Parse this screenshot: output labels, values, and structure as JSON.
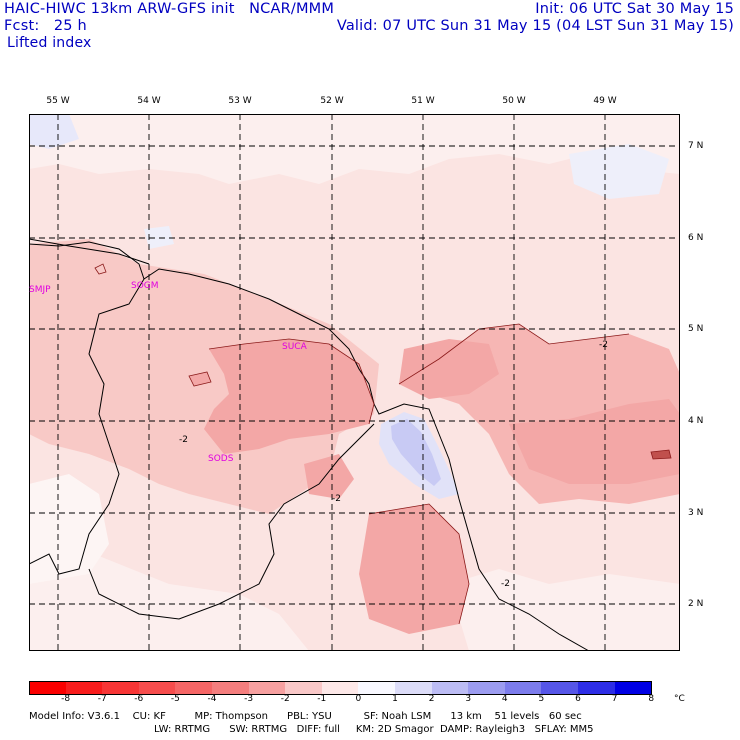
{
  "header": {
    "title": "HAIC-HIWC 13km ARW-GFS init   NCAR/MMM",
    "init": "Init: 06 UTC Sat 30 May 15",
    "fcst": "Fcst:   25 h",
    "valid": "Valid: 07 UTC Sun 31 May 15 (04 LST Sun 31 May 15)",
    "field": "Lifted index"
  },
  "map": {
    "lon_labels": [
      "55 W",
      "54 W",
      "53 W",
      "52 W",
      "51 W",
      "50 W",
      "49 W"
    ],
    "lat_labels": [
      "7 N",
      "6 N",
      "5 N",
      "4 N",
      "3 N",
      "2 N"
    ],
    "stations": [
      "SMJP",
      "SOGM",
      "SUCA",
      "SODS"
    ],
    "contour_labels": [
      "-2",
      "-2",
      "-2",
      "-2"
    ],
    "colors": {
      "background": "#fbe4e2",
      "light_pink": "#fcefee",
      "pink": "#f8c9c6",
      "medium": "#f3a7a6",
      "near_zero": "#fdf5f4",
      "light_blue": "#e7e8fa",
      "blue": "#c8caf4",
      "station_label": "#e000e0"
    }
  },
  "colorbar": {
    "labels": [
      "-8",
      "-7",
      "-6",
      "-5",
      "-4",
      "-3",
      "-2",
      "-1",
      "0",
      "1",
      "2",
      "3",
      "4",
      "5",
      "6",
      "7",
      "8"
    ],
    "unit": "°C",
    "colors": [
      "#fa0000",
      "#f81c1c",
      "#f73535",
      "#f64d4d",
      "#f56666",
      "#f47e7e",
      "#f6a0a0",
      "#f9c8c8",
      "#fde8e8",
      "#f8f8ff",
      "#dcdcf8",
      "#bcbcf4",
      "#9c9cf0",
      "#7c7cec",
      "#5656e8",
      "#2d2de6",
      "#0000e4"
    ]
  },
  "footer": {
    "line1": "Model Info: V3.6.1    CU: KF         MP: Thompson      PBL: YSU          SF: Noah LSM      13 km    51 levels   60 sec",
    "line2": "LW: RRTMG      SW: RRTMG   DIFF: full     KM: 2D Smagor  DAMP: Rayleigh3   SFLAY: MM5"
  }
}
